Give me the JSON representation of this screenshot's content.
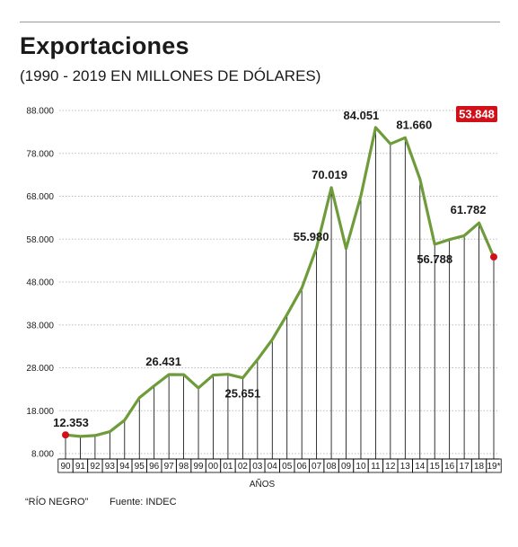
{
  "header": {
    "title": "Exportaciones",
    "subtitle": "(1990 - 2019 EN MILLONES DE DÓLARES)"
  },
  "footer": {
    "credit": "“RÍO NEGRO”",
    "source": "Fuente: INDEC"
  },
  "colors": {
    "line": "#6e9c3a",
    "marker": "#d0111a",
    "highlight_bg": "#d0111a",
    "grid": "#bdbdbd",
    "drop": "#000000"
  },
  "chart_data": {
    "type": "line",
    "title": "Exportaciones",
    "subtitle": "(1990 - 2019 EN MILLONES DE DÓLARES)",
    "xlabel": "AÑOS",
    "ylabel": "",
    "ylim": [
      8000,
      88000
    ],
    "yticks": [
      8000,
      18000,
      28000,
      38000,
      48000,
      58000,
      68000,
      78000,
      88000
    ],
    "ytick_labels": [
      "8.000",
      "18.000",
      "28.000",
      "38.000",
      "48.000",
      "58.000",
      "68.000",
      "78.000",
      "88.000"
    ],
    "grid": "horizontal",
    "categories": [
      "90",
      "91",
      "92",
      "93",
      "94",
      "95",
      "96",
      "97",
      "98",
      "99",
      "00",
      "01",
      "02",
      "03",
      "04",
      "05",
      "06",
      "07",
      "08",
      "09",
      "10",
      "11",
      "12",
      "13",
      "14",
      "15",
      "16",
      "17",
      "18",
      "19*"
    ],
    "series": [
      {
        "values": [
          12353,
          12000,
          12200,
          13100,
          15800,
          21000,
          23800,
          26431,
          26400,
          23300,
          26300,
          26500,
          25651,
          29900,
          34600,
          40400,
          46600,
          55980,
          70019,
          55800,
          68100,
          84051,
          80200,
          81660,
          72000,
          56788,
          57900,
          58800,
          61782,
          53848
        ]
      }
    ],
    "annotations": [
      {
        "index": 0,
        "text": "12.353"
      },
      {
        "index": 7,
        "text": "26.431"
      },
      {
        "index": 12,
        "text": "25.651"
      },
      {
        "index": 17,
        "text": "55.980"
      },
      {
        "index": 18,
        "text": "70.019"
      },
      {
        "index": 21,
        "text": "84.051"
      },
      {
        "index": 23,
        "text": "81.660"
      },
      {
        "index": 25,
        "text": "56.788"
      },
      {
        "index": 28,
        "text": "61.782"
      },
      {
        "index": 29,
        "text": "53.848",
        "highlight": true
      }
    ],
    "markers": [
      0,
      29
    ]
  }
}
